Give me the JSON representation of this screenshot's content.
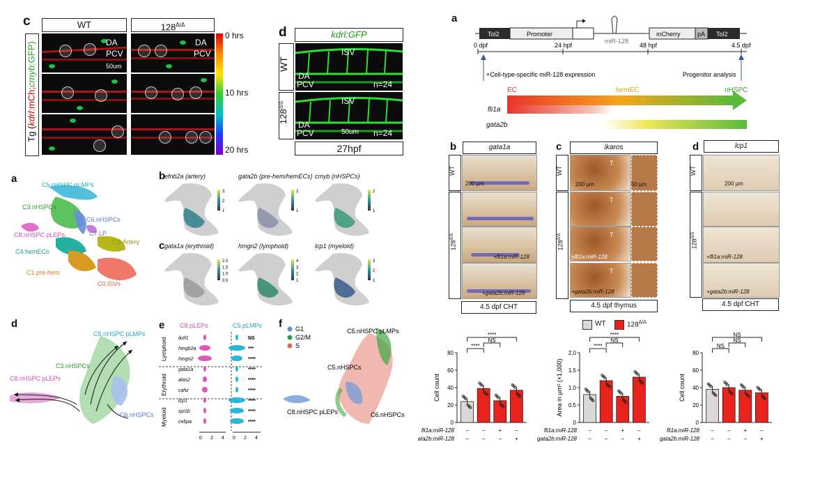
{
  "left_top": {
    "panel_c": "c",
    "panel_d": "d",
    "c_wt": "WT",
    "c_128": "128",
    "c_128_sup": "Δ/Δ",
    "c_da": "DA",
    "c_pcv": "PCV",
    "c_scale": "50um",
    "c_ylabel_tg": "Tg (",
    "c_ylabel_kdrl": "kdrl",
    "c_ylabel_mch": ":mCh;",
    "c_ylabel_cmyb": "cmyb",
    "c_ylabel_gfp": ":GFP)",
    "c_colorbar_0": "0 hrs",
    "c_colorbar_10": "10 hrs",
    "c_colorbar_20": "20 hrs",
    "d_title": "kdrl:GFP",
    "d_wt": "WT",
    "d_128": "128",
    "d_isv": "ISV",
    "d_da": "DA",
    "d_pcv": "PCV",
    "d_n": "n=24",
    "d_scale": "50um",
    "d_stage": "27hpf"
  },
  "umap": {
    "panel_a": "a",
    "panel_b": "b",
    "panel_c": "c",
    "panel_d": "d",
    "panel_e": "e",
    "panel_f": "f",
    "clusters": [
      "C5.nHSPC pLMPs",
      "C3.nHSPCs",
      "C6.nHSPCs",
      "C8.nHSPC pLEPs",
      "C7.LP",
      "C2.Artery",
      "C4.hemECs",
      "C1.pre-hem",
      "C0.ISVs"
    ],
    "b_titles": [
      "efnb2a (artery)",
      "gata2b (pre-hem/hemECs)",
      "cmyb (nHSPCs)"
    ],
    "c_titles": [
      "gata1a (erythroid)",
      "hmgn2 (lymphoid)",
      "lcp1 (myeloid)"
    ],
    "b_cbar1": [
      "3",
      "2",
      "1"
    ],
    "b_cbar2": [
      "2",
      "1"
    ],
    "b_cbar3": [
      "2",
      "1"
    ],
    "c_cbar1": [
      "2.0",
      "1.5",
      "1.0",
      "0.5"
    ],
    "c_cbar2": [
      "4",
      "3",
      "2",
      "1"
    ],
    "c_cbar3": [
      "3",
      "2",
      "1"
    ],
    "d_labels": [
      "C5.nHSPC pLMPs",
      "C3.nHSPCs",
      "C8.nHSPC pLEPs",
      "C6.nHSPCs"
    ],
    "e_header_left": "C8.pLEPs",
    "e_header_right": "C5.pLMPs",
    "e_groups": [
      "Lymphoid",
      "Erythroid",
      "Myeloid"
    ],
    "e_genes": [
      "ikzf1",
      "hmgb2a",
      "hmgn2",
      "gata1a",
      "alas2",
      "cahz",
      "lcp1",
      "spi1b",
      "cebpa"
    ],
    "e_sig": [
      "NS",
      "***",
      "****",
      "****",
      "****",
      "****",
      "****",
      "****",
      "****"
    ],
    "e_ticks": [
      "0",
      "2",
      "4"
    ],
    "f_legend": [
      "G1",
      "G2/M",
      "S"
    ],
    "f_colors": [
      "#5b8fd6",
      "#2f9e3a",
      "#e06a5a"
    ],
    "f_labels": [
      "C5.nHSPC pLMPs",
      "C5.nHSPCs",
      "C8.nHSPC pLEPs",
      "C6.nHSPCs"
    ]
  },
  "right": {
    "panel_a": "a",
    "construct": [
      "Tol2",
      "Promoter",
      "mCherry",
      "pA",
      "Tol2"
    ],
    "mir": "miR-128",
    "timeline": [
      "0 dpf",
      "24 hpf",
      "48 hpf",
      "4.5 dpf"
    ],
    "note_left": "+Cell-type-specific miR-128 expression",
    "note_right": "Progenitor analysis",
    "gradient_labels": [
      "EC",
      "hemEC",
      "nHSPC"
    ],
    "gene_rows": [
      "fli1a",
      "gata2b"
    ],
    "panel_b": "b",
    "panel_c": "c",
    "panel_d": "d",
    "b_gene": "gata1a",
    "c_gene": "ikaros",
    "d_gene": "lcp1",
    "wt": "WT",
    "ko": "128",
    "ko_sup": "Δ/Δ",
    "scale_200": "200 µm",
    "scale_50": "50 µm",
    "t": "T",
    "fli": "+fli1a:miR-128",
    "gata": "+gata2b:miR-128",
    "b_foot": "4.5 dpf CHT",
    "c_foot": "4.5 dpf thymus",
    "d_foot": "4.5 dpf CHT",
    "legend_wt": "WT",
    "legend_ko": "128",
    "row_fli": "fli1a:miR-128",
    "row_gata": "gata2b:miR-128"
  },
  "chart_data": [
    {
      "type": "bar",
      "categories": [
        "WT",
        "128Δ/Δ",
        "128Δ/Δ +fli1a:miR-128",
        "128Δ/Δ +gata2b:miR-128"
      ],
      "values": [
        24,
        39,
        25,
        37
      ],
      "ylabel": "Cell count",
      "ylim": [
        0,
        80
      ],
      "yticks": [
        "0",
        "20",
        "40",
        "60",
        "80"
      ],
      "row_fli": [
        "–",
        "–",
        "+",
        "–"
      ],
      "row_gata": [
        "–",
        "–",
        "–",
        "+"
      ],
      "sig": [
        "****",
        "NS",
        "****"
      ],
      "colors": [
        "#d9d9d9",
        "#e8231b",
        "#e8231b",
        "#e8231b"
      ]
    },
    {
      "type": "bar",
      "categories": [
        "WT",
        "128Δ/Δ",
        "128Δ/Δ +fli1a:miR-128",
        "128Δ/Δ +gata2b:miR-128"
      ],
      "values": [
        0.8,
        1.2,
        0.75,
        1.3
      ],
      "ylabel": "Area in µm² (×1,000)",
      "ylim": [
        0,
        2.0
      ],
      "yticks": [
        "0",
        "0.5",
        "1.0",
        "1.5",
        "2.0"
      ],
      "row_fli": [
        "–",
        "–",
        "+",
        "–"
      ],
      "row_gata": [
        "–",
        "–",
        "–",
        "+"
      ],
      "sig": [
        "****",
        "NS",
        "****"
      ],
      "colors": [
        "#d9d9d9",
        "#e8231b",
        "#e8231b",
        "#e8231b"
      ]
    },
    {
      "type": "bar",
      "categories": [
        "WT",
        "128Δ/Δ",
        "128Δ/Δ +fli1a:miR-128",
        "128Δ/Δ +gata2b:miR-128"
      ],
      "values": [
        38,
        40,
        37,
        34
      ],
      "ylabel": "Cell count",
      "ylim": [
        0,
        80
      ],
      "yticks": [
        "0",
        "20",
        "40",
        "60",
        "80"
      ],
      "row_fli": [
        "–",
        "–",
        "+",
        "–"
      ],
      "row_gata": [
        "–",
        "–",
        "–",
        "+"
      ],
      "sig": [
        "NS",
        "NS",
        "NS"
      ],
      "colors": [
        "#d9d9d9",
        "#e8231b",
        "#e8231b",
        "#e8231b"
      ]
    }
  ]
}
